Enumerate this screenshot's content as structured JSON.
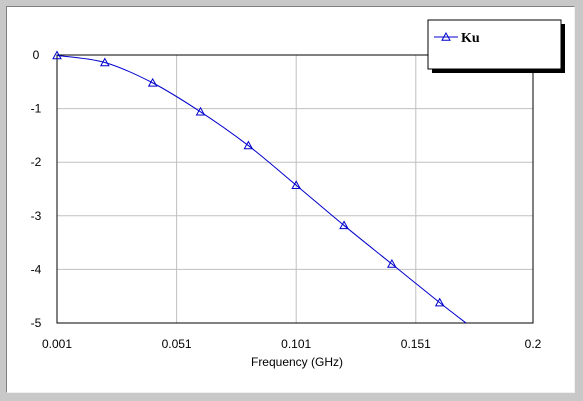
{
  "chart_data": {
    "type": "line",
    "xlabel": "Frequency (GHz)",
    "ylabel": "",
    "xlim": [
      0.001,
      0.2
    ],
    "ylim": [
      -5,
      0
    ],
    "xticks": [
      "0.001",
      "0.051",
      "0.101",
      "0.151",
      "0.2"
    ],
    "yticks": [
      "0",
      "-1",
      "-2",
      "-3",
      "-4",
      "-5"
    ],
    "grid": true,
    "legend_position": "top-right",
    "series": [
      {
        "name": "Ku",
        "color": "#0000cc",
        "marker": "triangle-up",
        "x": [
          0.001,
          0.021,
          0.041,
          0.061,
          0.081,
          0.101,
          0.121,
          0.141,
          0.161
        ],
        "y": [
          -0.01,
          -0.14,
          -0.52,
          -1.06,
          -1.69,
          -2.43,
          -3.18,
          -3.9,
          -4.62
        ],
        "curve_end": {
          "x": 0.172,
          "y": -5.0
        }
      }
    ]
  },
  "colors": {
    "background": "#c8c8c8",
    "plot_background": "#ffffff",
    "grid": "#c0c0c0",
    "series": "#0000cc"
  }
}
